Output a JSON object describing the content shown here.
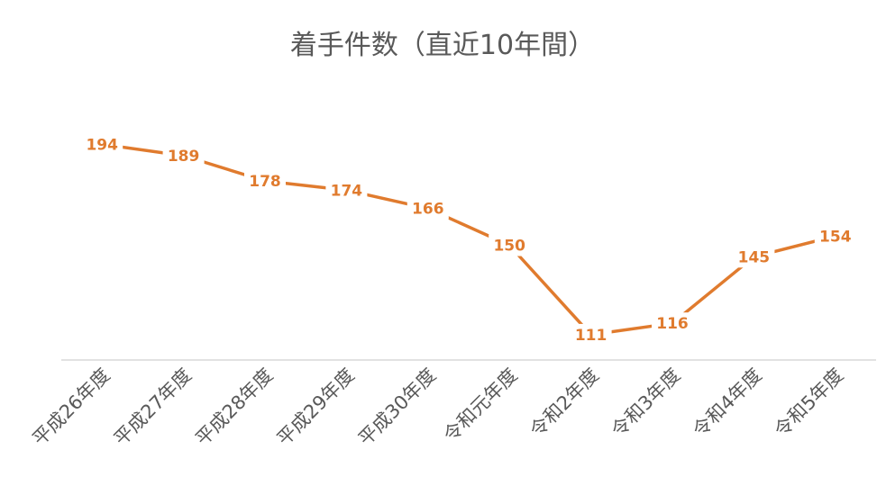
{
  "chart_data": {
    "type": "line",
    "title": "着手件数（直近10年間）",
    "xlabel": "",
    "ylabel": "",
    "categories": [
      "平成26年度",
      "平成27年度",
      "平成28年度",
      "平成29年度",
      "平成30年度",
      "令和元年度",
      "令和2年度",
      "令和3年度",
      "令和4年度",
      "令和5年度"
    ],
    "series": [
      {
        "name": "",
        "values": [
          194,
          189,
          178,
          174,
          166,
          150,
          111,
          116,
          145,
          154
        ]
      }
    ],
    "ylim": [
      100,
      220
    ],
    "grid": false,
    "legend": "none",
    "data_labels": true,
    "line_color": "#E07B2E",
    "label_color": "#E07B2E",
    "axis_color": "#D9D9D9",
    "text_color": "#595959"
  }
}
